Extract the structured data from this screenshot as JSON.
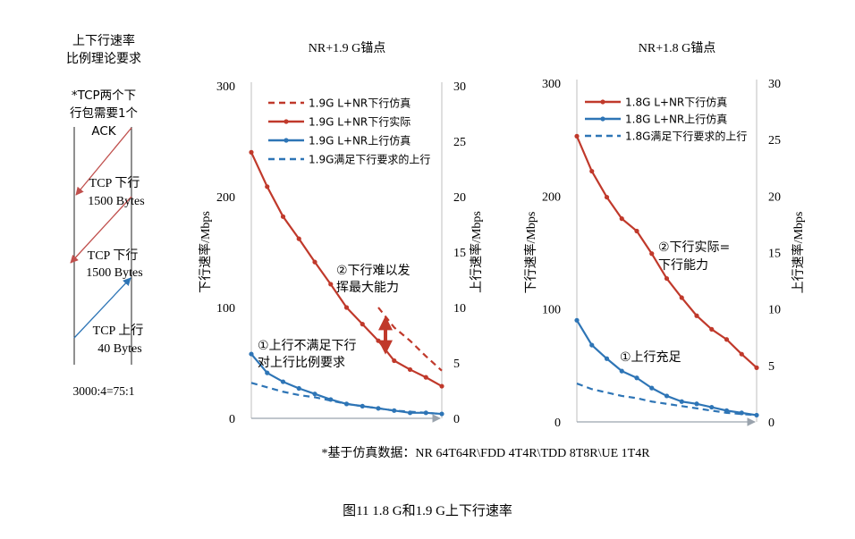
{
  "left_panel": {
    "title_line1": "上下行速率",
    "title_line2": "比例理论要求",
    "note_line1": "*TCP两个下",
    "note_line2": "行包需要1个",
    "note_line3": "ACK",
    "dl1_line1": "TCP 下行",
    "dl1_line2": "1500 Bytes",
    "dl2_line1": "TCP 下行",
    "dl2_line2": "1500 Bytes",
    "ul_line1": "TCP 上行",
    "ul_line2": "40 Bytes",
    "ratio": "3000:4=75:1",
    "colors": {
      "downlink": "#c0504d",
      "uplink": "#2e75b6"
    }
  },
  "footnote": "*基于仿真数据：NR 64T64R\\FDD 4T4R\\TDD 8T8R\\UE 1T4R",
  "caption": "图11    1.8 G和1.9 G上下行速率",
  "chart_data": [
    {
      "type": "line",
      "title": "NR+1.9 G锚点",
      "ylabel": "下行速率/Mbps",
      "y2label": "上行速率/Mbps",
      "ylim": [
        0,
        300
      ],
      "y2lim": [
        0,
        30
      ],
      "yticks": [
        "0",
        "100",
        "200",
        "300"
      ],
      "y2ticks": [
        "0",
        "5",
        "10",
        "15",
        "20",
        "25",
        "30"
      ],
      "x_count": 13,
      "legend_position": "top-left",
      "series": [
        {
          "name": "1.9G L+NR下行仿真",
          "axis": "left",
          "style": "dashed",
          "color": "#c0392b",
          "values": [
            null,
            null,
            null,
            null,
            null,
            null,
            null,
            null,
            100,
            82,
            70,
            56,
            43
          ]
        },
        {
          "name": "1.9G L+NR下行实际",
          "axis": "left",
          "style": "solid",
          "color": "#c0392b",
          "values": [
            240,
            209,
            182,
            162,
            141,
            121,
            100,
            85,
            70,
            52,
            44,
            37,
            29
          ]
        },
        {
          "name": "1.9G L+NR上行仿真",
          "axis": "right",
          "style": "solid",
          "color": "#2e75b6",
          "values": [
            5.8,
            4.1,
            3.3,
            2.7,
            2.2,
            1.7,
            1.3,
            1.1,
            0.9,
            0.7,
            0.5,
            0.5,
            0.4
          ]
        },
        {
          "name": "1.9G满足下行要求的上行",
          "axis": "right",
          "style": "dashed",
          "color": "#2e75b6",
          "values": [
            3.2,
            2.8,
            2.4,
            2.1,
            1.9,
            1.6,
            1.3,
            1.1,
            0.9,
            0.7,
            0.6,
            0.5,
            0.4
          ]
        }
      ],
      "annotations": [
        {
          "line1": "②下行难以发",
          "line2": "挥最大能力"
        },
        {
          "line1": "①上行不满足下行",
          "line2": "对上行比例要求"
        }
      ]
    },
    {
      "type": "line",
      "title": "NR+1.8 G锚点",
      "ylabel": "下行速率/Mbps",
      "y2label": "上行速率/Mbps",
      "ylim": [
        0,
        300
      ],
      "y2lim": [
        0,
        30
      ],
      "yticks": [
        "0",
        "100",
        "200",
        "300"
      ],
      "y2ticks": [
        "0",
        "5",
        "10",
        "15",
        "20",
        "25",
        "30"
      ],
      "x_count": 13,
      "legend_position": "top-left",
      "series": [
        {
          "name": "1.8G L+NR下行仿真",
          "axis": "left",
          "style": "solid",
          "color": "#c0392b",
          "values": [
            253,
            222,
            199,
            180,
            169,
            149,
            127,
            110,
            94,
            82,
            73,
            60,
            48
          ]
        },
        {
          "name": "1.8G L+NR上行仿真",
          "axis": "right",
          "style": "solid",
          "color": "#2e75b6",
          "values": [
            9.0,
            6.8,
            5.6,
            4.5,
            3.9,
            3.0,
            2.3,
            1.8,
            1.6,
            1.3,
            1.0,
            0.8,
            0.6
          ]
        },
        {
          "name": "1.8G满足下行要求的上行",
          "axis": "right",
          "style": "dashed",
          "color": "#2e75b6",
          "values": [
            3.4,
            2.9,
            2.6,
            2.3,
            2.1,
            1.8,
            1.6,
            1.4,
            1.2,
            1.0,
            0.8,
            0.7,
            0.6
          ]
        }
      ],
      "annotations": [
        {
          "line1": "②下行实际=",
          "line2": "下行能力"
        },
        {
          "line1": "①上行充足",
          "line2": ""
        }
      ]
    }
  ]
}
